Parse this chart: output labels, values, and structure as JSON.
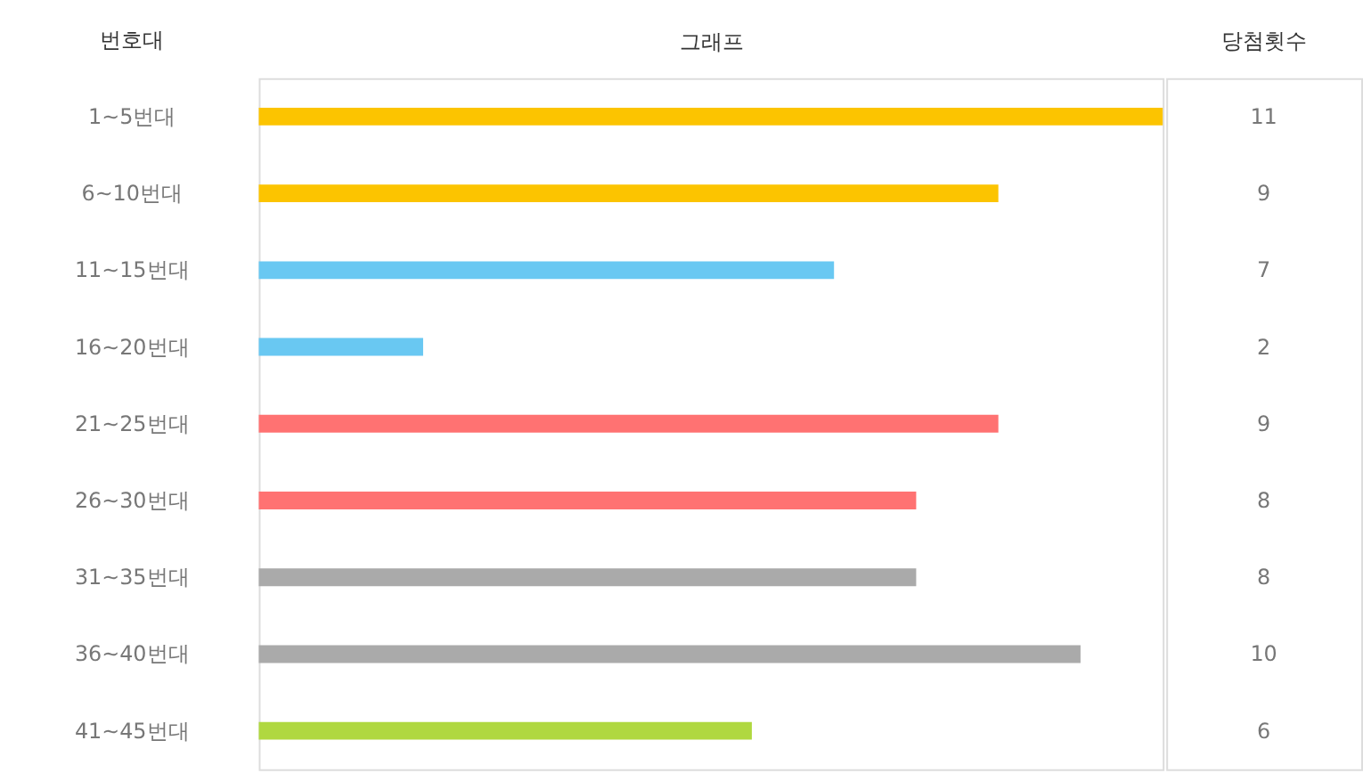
{
  "chart_data": {
    "type": "bar",
    "orientation": "horizontal",
    "ylabel": "번호대",
    "xlabel": "그래프",
    "categories": [
      "1~5번대",
      "6~10번대",
      "11~15번대",
      "16~20번대",
      "21~25번대",
      "26~30번대",
      "31~35번대",
      "36~40번대",
      "41~45번대"
    ],
    "values": [
      11,
      9,
      7,
      2,
      9,
      8,
      8,
      10,
      6
    ],
    "colors": [
      "#fcc400",
      "#fcc400",
      "#69c8f2",
      "#69c8f2",
      "#ff7272",
      "#ff7272",
      "#aaaaaa",
      "#aaaaaa",
      "#b0d840"
    ],
    "xlim": [
      0,
      11
    ],
    "data_labels": true,
    "annotations": [
      "당첨횟수"
    ],
    "grid": false
  }
}
